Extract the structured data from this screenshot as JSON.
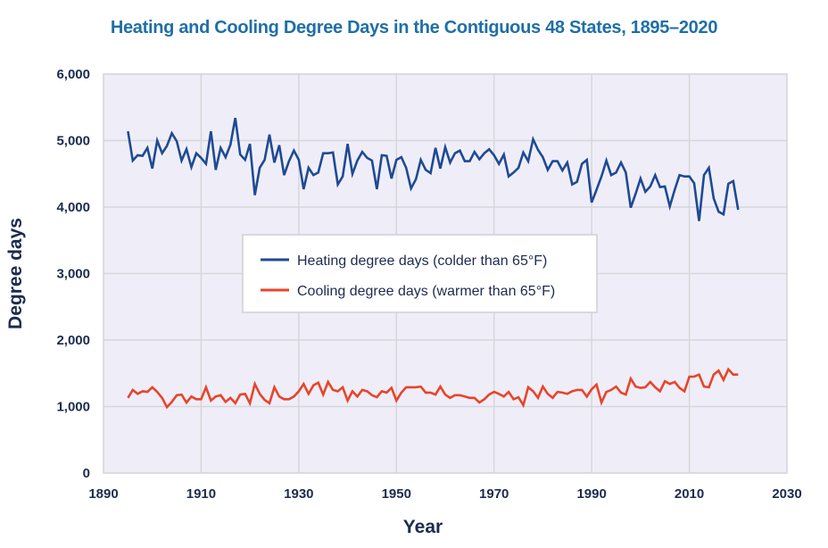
{
  "chart_data": {
    "type": "line",
    "title": "Heating and Cooling Degree Days in the Contiguous 48 States, 1895–2020",
    "xlabel": "Year",
    "ylabel": "Degree days",
    "xlim": [
      1890,
      2030
    ],
    "ylim": [
      0,
      6000
    ],
    "x_ticks": [
      1890,
      1910,
      1930,
      1950,
      1970,
      1990,
      2010,
      2030
    ],
    "x_tick_labels": [
      "1890",
      "1910",
      "1930",
      "1950",
      "1970",
      "1990",
      "2010",
      "2030"
    ],
    "y_ticks": [
      0,
      1000,
      2000,
      3000,
      4000,
      5000,
      6000
    ],
    "y_tick_labels": [
      "0",
      "1,000",
      "2,000",
      "3,000",
      "4,000",
      "5,000",
      "6,000"
    ],
    "grid": true,
    "legend_position": "center-left",
    "x_start": 1895,
    "series": [
      {
        "name": "Heating degree days (colder than 65°F)",
        "color": "#1f4a94",
        "values": [
          5140,
          4700,
          4780,
          4770,
          4890,
          4580,
          5000,
          4810,
          4920,
          5110,
          4990,
          4700,
          4870,
          4600,
          4810,
          4740,
          4650,
          5140,
          4560,
          4890,
          4750,
          4940,
          5340,
          4790,
          4710,
          4950,
          4180,
          4590,
          4710,
          5090,
          4670,
          4930,
          4480,
          4690,
          4850,
          4710,
          4270,
          4590,
          4480,
          4520,
          4810,
          4810,
          4820,
          4340,
          4460,
          4950,
          4500,
          4700,
          4830,
          4740,
          4700,
          4270,
          4780,
          4770,
          4430,
          4710,
          4750,
          4590,
          4280,
          4420,
          4710,
          4560,
          4510,
          4890,
          4580,
          4900,
          4670,
          4810,
          4850,
          4690,
          4690,
          4830,
          4720,
          4810,
          4870,
          4780,
          4650,
          4790,
          4460,
          4520,
          4590,
          4820,
          4690,
          5020,
          4860,
          4750,
          4560,
          4690,
          4690,
          4550,
          4670,
          4340,
          4380,
          4650,
          4710,
          4070,
          4260,
          4460,
          4700,
          4480,
          4520,
          4670,
          4520,
          3990,
          4200,
          4430,
          4230,
          4310,
          4480,
          4300,
          4310,
          4010,
          4260,
          4480,
          4460,
          4460,
          4360,
          3790,
          4480,
          4590,
          4130,
          3930,
          3890,
          4350,
          4390,
          3960
        ]
      },
      {
        "name": "Cooling degree days (warmer than 65°F)",
        "color": "#e8442a",
        "values": [
          1130,
          1250,
          1190,
          1230,
          1220,
          1290,
          1220,
          1130,
          990,
          1070,
          1170,
          1180,
          1060,
          1150,
          1110,
          1110,
          1290,
          1090,
          1150,
          1170,
          1070,
          1130,
          1050,
          1180,
          1190,
          1050,
          1340,
          1190,
          1100,
          1050,
          1290,
          1150,
          1110,
          1110,
          1150,
          1230,
          1340,
          1190,
          1320,
          1360,
          1180,
          1370,
          1250,
          1230,
          1290,
          1090,
          1230,
          1150,
          1250,
          1230,
          1170,
          1140,
          1230,
          1210,
          1280,
          1090,
          1210,
          1290,
          1290,
          1290,
          1300,
          1210,
          1210,
          1180,
          1300,
          1180,
          1130,
          1170,
          1170,
          1150,
          1130,
          1130,
          1060,
          1110,
          1180,
          1220,
          1190,
          1150,
          1220,
          1110,
          1140,
          1020,
          1290,
          1230,
          1130,
          1300,
          1190,
          1130,
          1220,
          1210,
          1190,
          1230,
          1250,
          1250,
          1150,
          1260,
          1330,
          1060,
          1220,
          1250,
          1300,
          1210,
          1180,
          1420,
          1300,
          1280,
          1290,
          1370,
          1290,
          1230,
          1380,
          1340,
          1370,
          1280,
          1230,
          1450,
          1450,
          1480,
          1300,
          1290,
          1480,
          1540,
          1400,
          1560,
          1480,
          1480
        ]
      }
    ]
  }
}
